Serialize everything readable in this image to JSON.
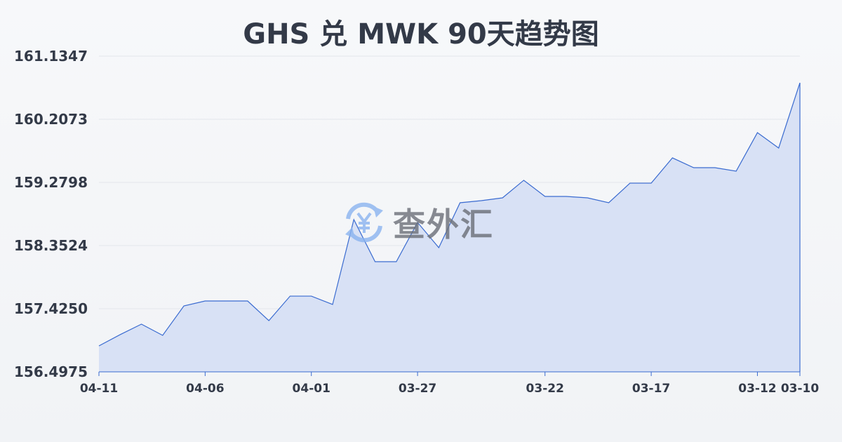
{
  "chart_data": {
    "type": "area",
    "title": "GHS 兑 MWK 90天趋势图",
    "xlabel": "",
    "ylabel": "",
    "ylim": [
      156.4975,
      161.1347
    ],
    "y_ticks": [
      "156.4975",
      "157.4250",
      "158.3524",
      "159.2798",
      "160.2073",
      "161.1347"
    ],
    "x_ticks": [
      {
        "index": 0,
        "label": "04-11"
      },
      {
        "index": 5,
        "label": "04-06"
      },
      {
        "index": 10,
        "label": "04-01"
      },
      {
        "index": 15,
        "label": "03-27"
      },
      {
        "index": 21,
        "label": "03-22"
      },
      {
        "index": 26,
        "label": "03-17"
      },
      {
        "index": 31,
        "label": "03-12"
      },
      {
        "index": 33,
        "label": "03-10"
      }
    ],
    "values": [
      156.879,
      157.044,
      157.198,
      157.033,
      157.466,
      157.538,
      157.538,
      157.538,
      157.25,
      157.61,
      157.61,
      157.487,
      158.734,
      158.115,
      158.115,
      158.692,
      158.321,
      158.981,
      159.012,
      159.053,
      159.311,
      159.074,
      159.074,
      159.053,
      158.981,
      159.269,
      159.269,
      159.64,
      159.496,
      159.496,
      159.445,
      160.011,
      159.785,
      160.743
    ],
    "grid": true,
    "line_color": "#3a6bd0",
    "fill_color": "#d8e1f5"
  },
  "watermark": {
    "text": "查外汇",
    "icon": "yen-exchange-icon"
  }
}
